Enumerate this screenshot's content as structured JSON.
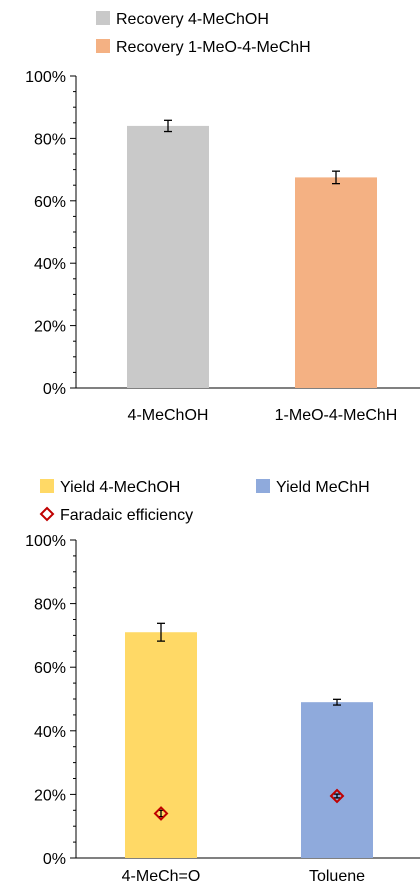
{
  "chart_data": [
    {
      "type": "bar",
      "title": "",
      "xlabel": "",
      "ylabel": "",
      "categories": [
        "4-MeChOH",
        "1-MeO-4-MeChH"
      ],
      "ylim": [
        0,
        100
      ],
      "yticks": [
        "0%",
        "20%",
        "40%",
        "60%",
        "80%",
        "100%"
      ],
      "legend_placement": "top",
      "grid": false,
      "series": [
        {
          "name": "Recovery 4-MeChOH",
          "color": "#C9C9C9",
          "values": [
            84,
            null
          ],
          "errors": [
            1.8,
            null
          ]
        },
        {
          "name": "Recovery 1-MeO-4-MeChH",
          "color": "#F4B183",
          "values": [
            null,
            67.5
          ],
          "errors": [
            null,
            2.0
          ]
        }
      ]
    },
    {
      "type": "bar",
      "title": "",
      "xlabel": "",
      "ylabel": "",
      "categories": [
        "4-MeCh=O",
        "Toluene"
      ],
      "ylim": [
        0,
        100
      ],
      "yticks": [
        "0%",
        "20%",
        "40%",
        "60%",
        "80%",
        "100%"
      ],
      "legend_placement": "top",
      "grid": false,
      "series": [
        {
          "name": "Yield 4-MeChOH",
          "color": "#FFD966",
          "values": [
            71,
            null
          ],
          "errors": [
            2.8,
            null
          ]
        },
        {
          "name": "Yield MeChH",
          "color": "#8FAADC",
          "values": [
            null,
            49
          ],
          "errors": [
            null,
            0.9
          ]
        },
        {
          "name": "Faradaic efficiency",
          "kind": "marker",
          "color": "#C00000",
          "values": [
            14,
            19.5
          ],
          "errors": [
            1.0,
            0.6
          ]
        }
      ]
    }
  ]
}
